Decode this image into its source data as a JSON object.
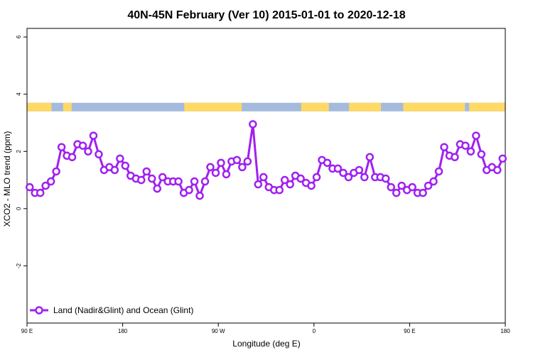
{
  "chart_data": {
    "type": "line",
    "title": "40N-45N February (Ver 10)   2015-01-01 to 2020-12-18",
    "xlabel": "Longitude (deg E)",
    "ylabel": "XCO2 - MLO trend (ppm)",
    "xlim": [
      90,
      540
    ],
    "ylim": [
      -4,
      6.3
    ],
    "x_ticks": [
      {
        "value": 90,
        "label": "90 E"
      },
      {
        "value": 180,
        "label": "180"
      },
      {
        "value": 270,
        "label": "90 W"
      },
      {
        "value": 360,
        "label": "0"
      },
      {
        "value": 450,
        "label": "90 E"
      },
      {
        "value": 540,
        "label": "180"
      }
    ],
    "y_ticks": [
      {
        "value": -2,
        "label": "-2"
      },
      {
        "value": 0,
        "label": "0"
      },
      {
        "value": 2,
        "label": "2"
      },
      {
        "value": 4,
        "label": "4"
      },
      {
        "value": 6,
        "label": "6"
      }
    ],
    "legend": {
      "position": "bottom-left"
    },
    "colors": {
      "series": "#a020f0",
      "land": "#ffd966",
      "ocean": "#a4bbde"
    },
    "surface_strip": {
      "y_range": [
        3.4,
        3.7
      ],
      "land_segments": [
        [
          90,
          113
        ],
        [
          124,
          132
        ],
        [
          238,
          292
        ],
        [
          348,
          374
        ],
        [
          393,
          423
        ],
        [
          444,
          502
        ],
        [
          506,
          540
        ]
      ]
    },
    "series": [
      {
        "name": "Land (Nadir&Glint) and Ocean (Glint)",
        "x": [
          92.5,
          97.5,
          102.5,
          107.5,
          112.5,
          117.5,
          122.5,
          127.5,
          132.5,
          137.5,
          142.5,
          147.5,
          152.5,
          157.5,
          162.5,
          167.5,
          172.5,
          177.5,
          182.5,
          187.5,
          192.5,
          197.5,
          202.5,
          207.5,
          212.5,
          217.5,
          222.5,
          227.5,
          232.5,
          237.5,
          242.5,
          247.5,
          252.5,
          257.5,
          262.5,
          267.5,
          272.5,
          277.5,
          282.5,
          287.5,
          292.5,
          297.5,
          302.5,
          307.5,
          312.5,
          317.5,
          322.5,
          327.5,
          332.5,
          337.5,
          342.5,
          347.5,
          352.5,
          357.5,
          362.5,
          367.5,
          372.5,
          377.5,
          382.5,
          387.5,
          392.5,
          397.5,
          402.5,
          407.5,
          412.5,
          417.5,
          422.5,
          427.5,
          432.5,
          437.5,
          442.5,
          447.5,
          452.5,
          457.5,
          462.5,
          467.5,
          472.5,
          477.5,
          482.5,
          487.5,
          492.5,
          497.5,
          502.5,
          507.5,
          512.5,
          517.5,
          522.5,
          527.5,
          532.5,
          537.5
        ],
        "values": [
          0.75,
          0.55,
          0.55,
          0.8,
          0.95,
          1.3,
          2.15,
          1.85,
          1.8,
          2.25,
          2.2,
          2.0,
          2.55,
          1.9,
          1.35,
          1.45,
          1.35,
          1.75,
          1.5,
          1.15,
          1.05,
          1.0,
          1.3,
          1.05,
          0.7,
          1.1,
          0.95,
          0.95,
          0.95,
          0.55,
          0.65,
          0.95,
          0.45,
          0.95,
          1.45,
          1.25,
          1.6,
          1.2,
          1.65,
          1.7,
          1.45,
          1.65,
          2.95,
          0.85,
          1.1,
          0.75,
          0.65,
          0.65,
          1.0,
          0.85,
          1.15,
          1.05,
          0.9,
          0.8,
          1.1,
          1.7,
          1.6,
          1.4,
          1.4,
          1.25,
          1.1,
          1.25,
          1.35,
          1.1,
          1.8,
          1.1,
          1.1,
          1.05,
          0.75,
          0.55,
          0.8,
          0.65,
          0.75,
          0.55,
          0.55,
          0.8,
          0.95,
          1.3,
          2.15,
          1.85,
          1.8,
          2.25,
          2.2,
          2.0,
          2.55,
          1.9,
          1.35,
          1.45,
          1.35,
          1.75
        ]
      }
    ]
  }
}
